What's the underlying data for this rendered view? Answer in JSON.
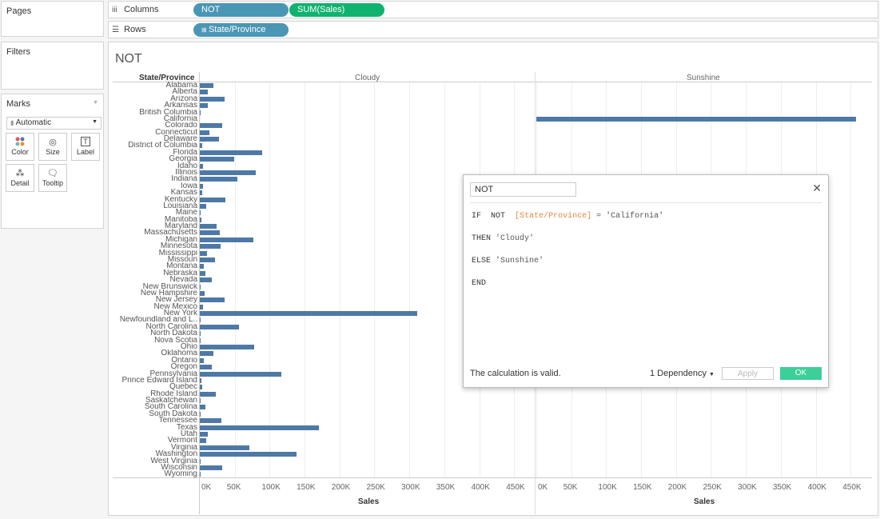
{
  "pages_panel": {
    "title": "Pages"
  },
  "filters_panel": {
    "title": "Filters"
  },
  "marks_panel": {
    "title": "Marks",
    "mark_type": "Automatic",
    "buttons": [
      "Color",
      "Size",
      "Label",
      "Detail",
      "Tooltip"
    ]
  },
  "columns_shelf": {
    "label": "Columns",
    "pills": [
      "NOT",
      "SUM(Sales)"
    ]
  },
  "rows_shelf": {
    "label": "Rows",
    "pills": [
      "State/Province"
    ]
  },
  "sheet": {
    "title": "NOT",
    "row_header": "State/Province",
    "panes": [
      "Cloudy",
      "Sunshine"
    ],
    "axis_title": "Sales"
  },
  "colors": {
    "bar": "#4e79a7",
    "pill_blue": "#4a96b5",
    "pill_green": "#10b26f",
    "ok_button": "#3ccf99"
  },
  "chart_data": {
    "type": "bar",
    "orientation": "horizontal",
    "xlabel": "Sales",
    "xlim": [
      0,
      460000
    ],
    "ticks": [
      "0K",
      "50K",
      "100K",
      "150K",
      "200K",
      "250K",
      "300K",
      "350K",
      "400K",
      "450K"
    ],
    "categories": [
      "Alabama",
      "Alberta",
      "Arizona",
      "Arkansas",
      "British Columbia",
      "California",
      "Colorado",
      "Connecticut",
      "Delaware",
      "District of Columbia",
      "Florida",
      "Georgia",
      "Idaho",
      "Illinois",
      "Indiana",
      "Iowa",
      "Kansas",
      "Kentucky",
      "Louisiana",
      "Maine",
      "Manitoba",
      "Maryland",
      "Massachusetts",
      "Michigan",
      "Minnesota",
      "Mississippi",
      "Missouri",
      "Montana",
      "Nebraska",
      "Nevada",
      "New Brunswick",
      "New Hampshire",
      "New Jersey",
      "New Mexico",
      "New York",
      "Newfoundland and L..",
      "North Carolina",
      "North Dakota",
      "Nova Scotia",
      "Ohio",
      "Oklahoma",
      "Ontario",
      "Oregon",
      "Pennsylvania",
      "Prince Edward Island",
      "Quebec",
      "Rhode Island",
      "Saskatchewan",
      "South Carolina",
      "South Dakota",
      "Tennessee",
      "Texas",
      "Utah",
      "Vermont",
      "Virginia",
      "Washington",
      "West Virginia",
      "Wisconsin",
      "Wyoming"
    ],
    "series": [
      {
        "name": "Cloudy",
        "values": [
          19500,
          11000,
          35300,
          11700,
          1500,
          0,
          32100,
          13400,
          27400,
          2900,
          89500,
          49100,
          4400,
          80200,
          53600,
          4600,
          2900,
          36600,
          9200,
          1300,
          1800,
          23700,
          28600,
          76300,
          29900,
          10800,
          22200,
          5600,
          7500,
          16700,
          1200,
          7300,
          35800,
          4800,
          310900,
          1600,
          55600,
          900,
          1400,
          78300,
          19700,
          6200,
          17400,
          116500,
          1900,
          3900,
          22600,
          1000,
          8500,
          1300,
          30700,
          170200,
          11200,
          8900,
          70600,
          138600,
          1200,
          32100,
          1600
        ]
      },
      {
        "name": "Sunshine",
        "values": [
          0,
          0,
          0,
          0,
          0,
          457700,
          0,
          0,
          0,
          0,
          0,
          0,
          0,
          0,
          0,
          0,
          0,
          0,
          0,
          0,
          0,
          0,
          0,
          0,
          0,
          0,
          0,
          0,
          0,
          0,
          0,
          0,
          0,
          0,
          0,
          0,
          0,
          0,
          0,
          0,
          0,
          0,
          0,
          0,
          0,
          0,
          0,
          0,
          0,
          0,
          0,
          0,
          0,
          0,
          0,
          0,
          0,
          0,
          0
        ]
      }
    ]
  },
  "calc_dialog": {
    "name": "NOT",
    "line1_kw": "IF",
    "line1_not": "NOT",
    "line1_field": "[State/Province]",
    "line1_rest": "= 'California'",
    "line2_kw": "THEN",
    "line2_str": "'Cloudy'",
    "line3_kw": "ELSE",
    "line3_str": "'Sunshine'",
    "line4_kw": "END",
    "status": "The calculation is valid.",
    "dependency": "1 Dependency",
    "apply": "Apply",
    "ok": "OK"
  }
}
